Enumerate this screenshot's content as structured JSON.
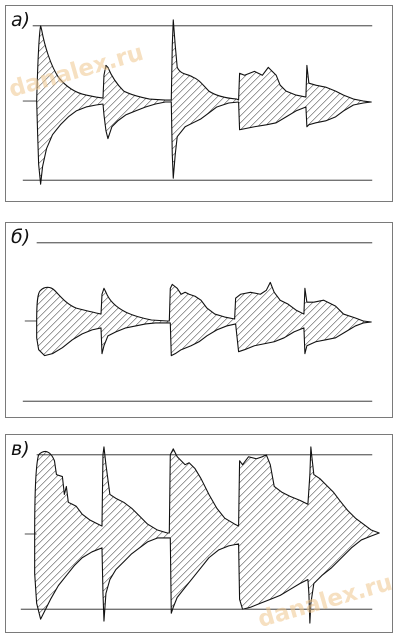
{
  "panels": [
    {
      "id": "a",
      "label": "а)"
    },
    {
      "id": "b",
      "label": "б)"
    },
    {
      "id": "c",
      "label": "в)"
    }
  ],
  "watermark": {
    "text": "danalex.ru",
    "color": "#f0c890"
  }
}
